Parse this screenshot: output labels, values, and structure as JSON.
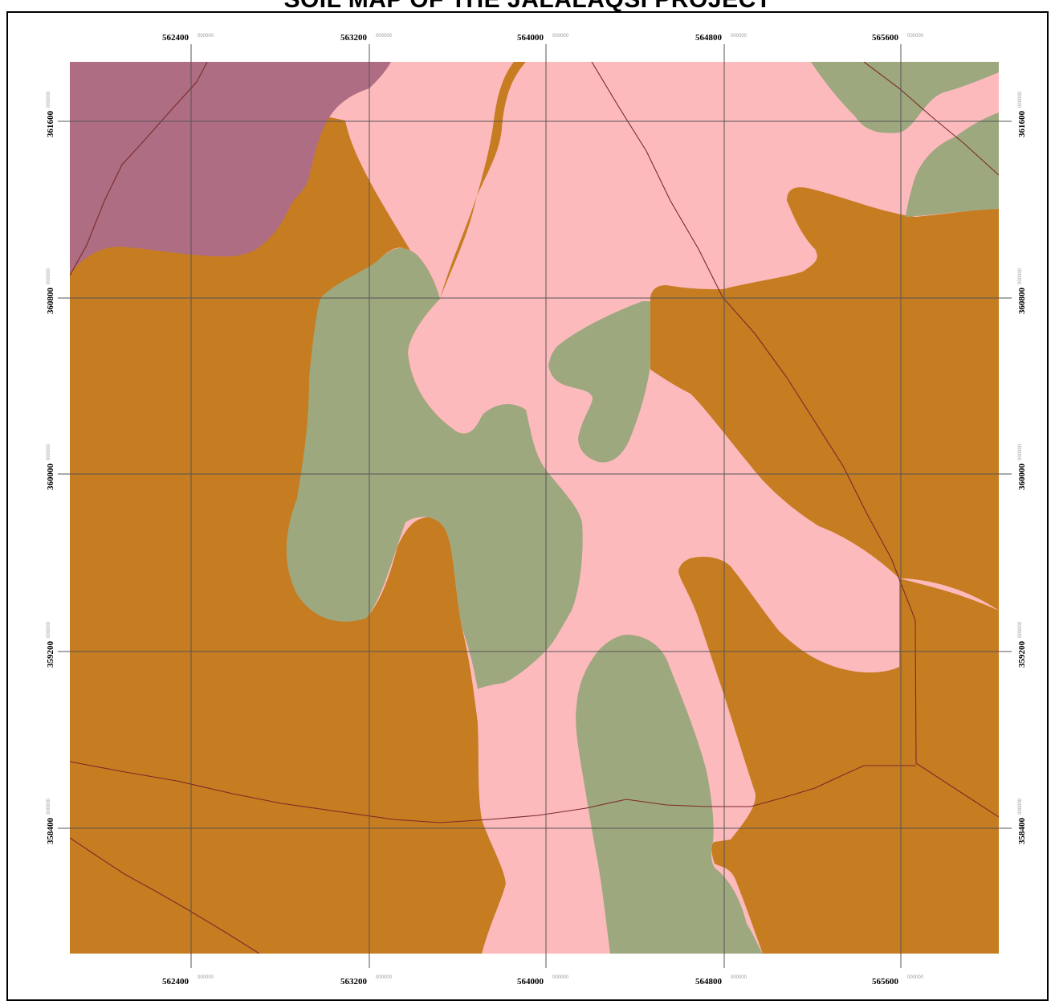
{
  "title": "SOIL MAP OF THE JALALAQSI PROJECT",
  "tick_suffix": "000000",
  "x_ticks": [
    "562400",
    "563200",
    "564000",
    "564800",
    "565600"
  ],
  "y_ticks": [
    "361600",
    "360800",
    "360000",
    "359200",
    "358400"
  ],
  "colors": {
    "pink": "#fdbabd",
    "brown": "#c67c20",
    "green": "#9ea87f",
    "purple": "#af6d84",
    "line": "#7a2a2a",
    "grid": "#555555"
  }
}
